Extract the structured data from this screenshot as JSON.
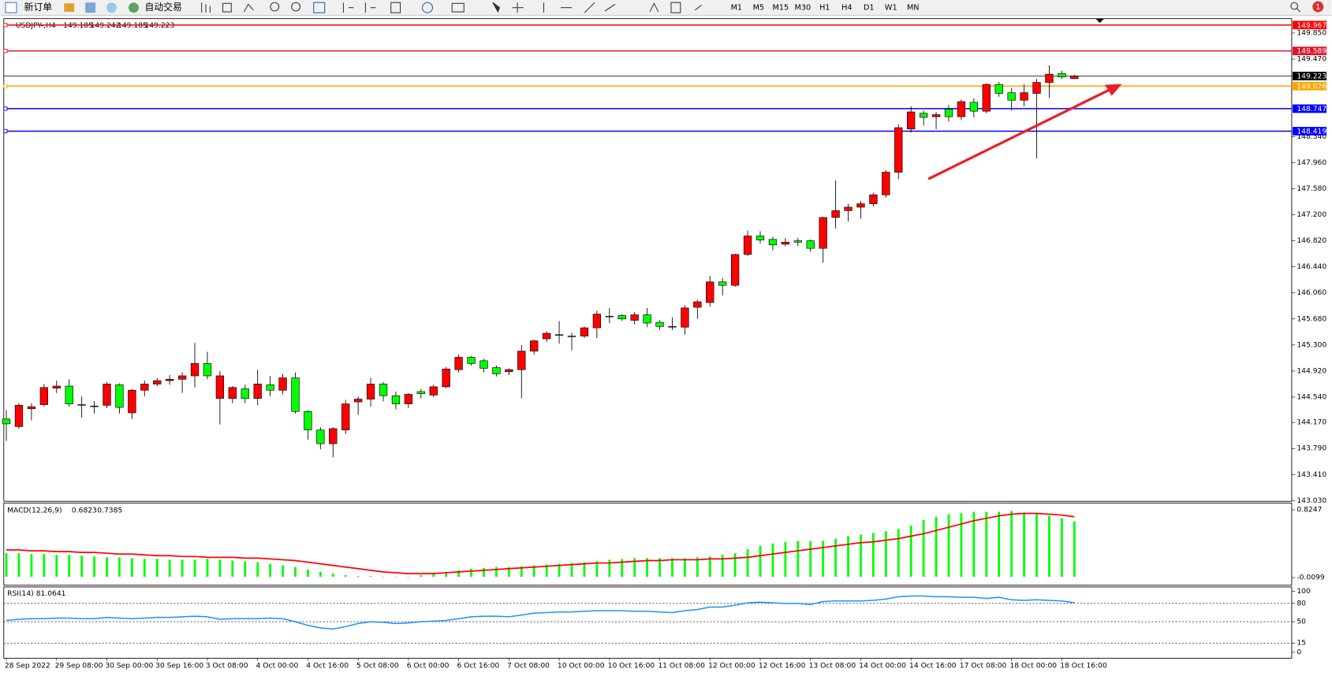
{
  "toolbar": {
    "new_order": "新订单",
    "auto_trading": "自动交易",
    "timeframes": [
      "M1",
      "M5",
      "M15",
      "M30",
      "H1",
      "H4",
      "D1",
      "W1",
      "MN"
    ],
    "notification_count": 1
  },
  "chart_data": [
    {
      "type": "candlestick",
      "title": "USDJPY-,H4",
      "categories": [
        "28 Sep 2022",
        null,
        null,
        null,
        "29 Sep 08:00",
        null,
        null,
        null,
        "30 Sep 00:00",
        null,
        null,
        null,
        "30 Sep 16:00",
        null,
        null,
        null,
        "3 Oct 08:00",
        null,
        null,
        null,
        "4 Oct 00:00",
        null,
        null,
        null,
        "4 Oct 16:00",
        null,
        null,
        null,
        "5 Oct 08:00",
        null,
        null,
        null,
        "6 Oct 00:00",
        null,
        null,
        null,
        "6 Oct 16:00",
        null,
        null,
        null,
        "7 Oct 08:00",
        null,
        null,
        null,
        "10 Oct 00:00",
        null,
        null,
        null,
        "10 Oct 16:00",
        null,
        null,
        null,
        "11 Oct 08:00",
        null,
        null,
        null,
        "12 Oct 00:00",
        null,
        null,
        null,
        "12 Oct 16:00",
        null,
        null,
        null,
        "13 Oct 08:00",
        null,
        null,
        null,
        "14 Oct 00:00",
        null,
        null,
        null,
        "14 Oct 16:00",
        null,
        null,
        null,
        "17 Oct 08:00",
        null,
        null,
        null,
        "18 Oct 00:00",
        null,
        null,
        null,
        "18 Oct 16:00",
        null
      ],
      "open": [
        144.22,
        144.11,
        144.37,
        144.43,
        144.67,
        144.7,
        144.42,
        144.4,
        144.42,
        144.72,
        144.31,
        144.64,
        144.73,
        144.78,
        144.8,
        144.85,
        145.03,
        144.52,
        144.52,
        144.66,
        144.52,
        144.72,
        144.64,
        144.82,
        144.33,
        144.06,
        143.86,
        144.06,
        144.47,
        144.51,
        144.73,
        144.56,
        144.44,
        144.62,
        144.57,
        144.69,
        144.94,
        145.12,
        145.07,
        144.97,
        144.91,
        144.94,
        145.21,
        145.39,
        145.45,
        145.43,
        145.43,
        145.55,
        145.72,
        145.73,
        145.66,
        145.74,
        145.63,
        145.56,
        145.56,
        145.85,
        145.92,
        146.22,
        146.17,
        146.62,
        146.89,
        146.84,
        146.77,
        146.82,
        146.82,
        146.71,
        147.16,
        147.26,
        147.31,
        147.36,
        147.49,
        147.82,
        148.45,
        148.68,
        148.63,
        148.74,
        148.63,
        148.84,
        148.71,
        149.1,
        148.98,
        148.87,
        148.97,
        149.13,
        149.26,
        149.185
      ],
      "high": [
        144.35,
        144.45,
        144.45,
        144.73,
        144.78,
        144.8,
        144.55,
        144.48,
        144.76,
        144.74,
        144.66,
        144.78,
        144.82,
        144.86,
        144.9,
        145.33,
        145.2,
        144.92,
        144.7,
        144.72,
        144.94,
        144.85,
        144.88,
        144.9,
        144.35,
        144.1,
        144.1,
        144.5,
        144.55,
        144.82,
        144.76,
        144.62,
        144.6,
        144.66,
        144.72,
        144.98,
        145.16,
        145.14,
        145.1,
        145.0,
        144.96,
        145.3,
        145.38,
        145.5,
        145.65,
        145.48,
        145.57,
        145.8,
        145.84,
        145.75,
        145.78,
        145.84,
        145.66,
        145.7,
        145.88,
        145.96,
        146.31,
        146.28,
        146.63,
        146.97,
        146.96,
        146.88,
        146.86,
        146.86,
        146.84,
        147.17,
        147.7,
        147.36,
        147.4,
        147.52,
        147.85,
        148.52,
        148.78,
        148.72,
        148.7,
        148.8,
        148.88,
        148.9,
        149.12,
        149.14,
        149.05,
        149.1,
        149.18,
        149.38,
        149.3,
        149.242
      ],
      "low": [
        143.9,
        144.08,
        144.2,
        144.4,
        144.6,
        144.4,
        144.24,
        144.3,
        144.38,
        144.3,
        144.22,
        144.55,
        144.7,
        144.72,
        144.6,
        144.68,
        144.8,
        144.14,
        144.45,
        144.45,
        144.42,
        144.55,
        144.58,
        144.3,
        143.92,
        143.78,
        143.66,
        144.0,
        144.28,
        144.4,
        144.48,
        144.36,
        144.38,
        144.52,
        144.54,
        144.67,
        144.9,
        145.0,
        144.9,
        144.84,
        144.86,
        144.52,
        145.16,
        145.34,
        145.32,
        145.22,
        145.4,
        145.4,
        145.62,
        145.65,
        145.6,
        145.56,
        145.52,
        145.52,
        145.45,
        145.68,
        145.86,
        146.02,
        146.15,
        146.6,
        146.78,
        146.68,
        146.74,
        146.74,
        146.66,
        146.5,
        147.0,
        147.1,
        147.14,
        147.32,
        147.45,
        147.72,
        148.4,
        148.5,
        148.45,
        148.56,
        148.58,
        148.62,
        148.68,
        148.92,
        148.72,
        148.78,
        148.02,
        148.9,
        149.18,
        149.185
      ],
      "close": [
        144.15,
        144.42,
        144.4,
        144.68,
        144.7,
        144.44,
        144.43,
        144.41,
        144.73,
        144.39,
        144.64,
        144.73,
        144.78,
        144.8,
        144.85,
        145.03,
        144.85,
        144.85,
        144.68,
        144.52,
        144.73,
        144.64,
        144.82,
        144.33,
        144.06,
        143.86,
        144.08,
        144.44,
        144.51,
        144.73,
        144.56,
        144.44,
        144.58,
        144.59,
        144.69,
        144.95,
        145.12,
        145.03,
        144.96,
        144.88,
        144.94,
        145.21,
        145.36,
        145.47,
        145.44,
        145.42,
        145.55,
        145.75,
        145.71,
        145.68,
        145.74,
        145.62,
        145.57,
        145.57,
        145.84,
        145.93,
        146.22,
        146.17,
        146.62,
        146.89,
        146.83,
        146.76,
        146.8,
        146.8,
        146.71,
        147.16,
        147.26,
        147.31,
        147.36,
        147.49,
        147.82,
        148.47,
        148.7,
        148.62,
        148.66,
        148.63,
        148.85,
        148.71,
        149.1,
        148.97,
        148.87,
        148.98,
        149.13,
        149.25,
        149.21,
        149.223
      ],
      "up_color": "#ff0000",
      "down_color": "#00ff00",
      "ylim": [
        143.02,
        150.06
      ],
      "yticks": [
        {
          "value": 149.85,
          "label": "149.850"
        },
        {
          "value": 149.47,
          "label": "149.470"
        },
        {
          "value": 148.34,
          "label": "148.340"
        },
        {
          "value": 147.96,
          "label": "147.960"
        },
        {
          "value": 147.58,
          "label": "147.580"
        },
        {
          "value": 147.2,
          "label": "147.200"
        },
        {
          "value": 146.82,
          "label": "146.820"
        },
        {
          "value": 146.44,
          "label": "146.440"
        },
        {
          "value": 146.06,
          "label": "146.060"
        },
        {
          "value": 145.68,
          "label": "145.680"
        },
        {
          "value": 145.3,
          "label": "145.300"
        },
        {
          "value": 144.92,
          "label": "144.920"
        },
        {
          "value": 144.54,
          "label": "144.540"
        },
        {
          "value": 144.17,
          "label": "144.170"
        },
        {
          "value": 143.79,
          "label": "143.790"
        },
        {
          "value": 143.41,
          "label": "143.410"
        },
        {
          "value": 143.03,
          "label": "143.030"
        }
      ],
      "hlines": [
        {
          "value": 149.967,
          "color": "#ff0000"
        },
        {
          "value": 149.589,
          "color": "#e8102a"
        },
        {
          "value": 149.076,
          "color": "#ffa500"
        },
        {
          "value": 148.747,
          "color": "#0000ff"
        },
        {
          "value": 148.419,
          "color": "#0000ff"
        }
      ]
    },
    {
      "type": "macd",
      "title": "MACD(12,26,9)",
      "histogram": [
        0.29,
        0.29,
        0.28,
        0.28,
        0.27,
        0.27,
        0.26,
        0.25,
        0.24,
        0.24,
        0.23,
        0.22,
        0.22,
        0.21,
        0.21,
        0.21,
        0.22,
        0.21,
        0.2,
        0.19,
        0.18,
        0.16,
        0.14,
        0.12,
        0.09,
        0.06,
        0.04,
        0.02,
        0.01,
        0.01,
        0.0,
        -0.005,
        0.0,
        0.02,
        0.04,
        0.06,
        0.08,
        0.1,
        0.11,
        0.12,
        0.12,
        0.13,
        0.14,
        0.15,
        0.16,
        0.17,
        0.18,
        0.19,
        0.21,
        0.22,
        0.23,
        0.23,
        0.23,
        0.23,
        0.23,
        0.24,
        0.25,
        0.27,
        0.29,
        0.34,
        0.38,
        0.41,
        0.43,
        0.44,
        0.44,
        0.44,
        0.47,
        0.5,
        0.52,
        0.54,
        0.56,
        0.59,
        0.63,
        0.7,
        0.74,
        0.77,
        0.78,
        0.8,
        0.8,
        0.8,
        0.81,
        0.79,
        0.77,
        0.75,
        0.72,
        0.6823
      ],
      "signal": [
        0.33,
        0.33,
        0.32,
        0.32,
        0.31,
        0.31,
        0.3,
        0.3,
        0.29,
        0.28,
        0.28,
        0.27,
        0.26,
        0.26,
        0.25,
        0.25,
        0.24,
        0.24,
        0.24,
        0.23,
        0.23,
        0.22,
        0.21,
        0.2,
        0.18,
        0.16,
        0.14,
        0.12,
        0.1,
        0.08,
        0.06,
        0.05,
        0.04,
        0.04,
        0.04,
        0.05,
        0.06,
        0.07,
        0.08,
        0.09,
        0.1,
        0.11,
        0.12,
        0.13,
        0.14,
        0.15,
        0.16,
        0.17,
        0.17,
        0.18,
        0.19,
        0.2,
        0.2,
        0.21,
        0.21,
        0.21,
        0.22,
        0.22,
        0.23,
        0.24,
        0.26,
        0.28,
        0.3,
        0.32,
        0.34,
        0.36,
        0.38,
        0.4,
        0.42,
        0.43,
        0.45,
        0.47,
        0.5,
        0.53,
        0.57,
        0.61,
        0.65,
        0.69,
        0.72,
        0.75,
        0.77,
        0.78,
        0.78,
        0.77,
        0.76,
        0.7385
      ],
      "histogram_color": "#00ff00",
      "signal_color": "#ff0000",
      "ylim": [
        -0.0099,
        0.8247
      ],
      "yticks": [
        0.8247,
        -0.0099
      ]
    },
    {
      "type": "line",
      "title": "RSI(14)",
      "values": [
        52,
        54,
        55,
        55,
        56,
        56,
        55,
        55,
        57,
        56,
        55,
        56,
        57,
        57,
        58,
        59,
        58,
        54,
        55,
        55,
        55,
        56,
        55,
        50,
        44,
        40,
        38,
        42,
        47,
        50,
        49,
        47,
        48,
        50,
        51,
        52,
        55,
        58,
        59,
        59,
        58,
        61,
        64,
        65,
        66,
        66,
        67,
        68,
        68,
        68,
        67,
        67,
        66,
        65,
        68,
        70,
        74,
        74,
        77,
        81,
        82,
        81,
        80,
        80,
        78,
        83,
        84,
        84,
        84,
        85,
        87,
        91,
        92,
        92,
        91,
        91,
        90,
        90,
        88,
        90,
        86,
        85,
        86,
        85,
        84,
        81.0641
      ],
      "color": "#1e90ff",
      "ylim": [
        0,
        100
      ],
      "yticks": [
        100,
        80,
        50,
        15,
        0
      ]
    }
  ]
}
